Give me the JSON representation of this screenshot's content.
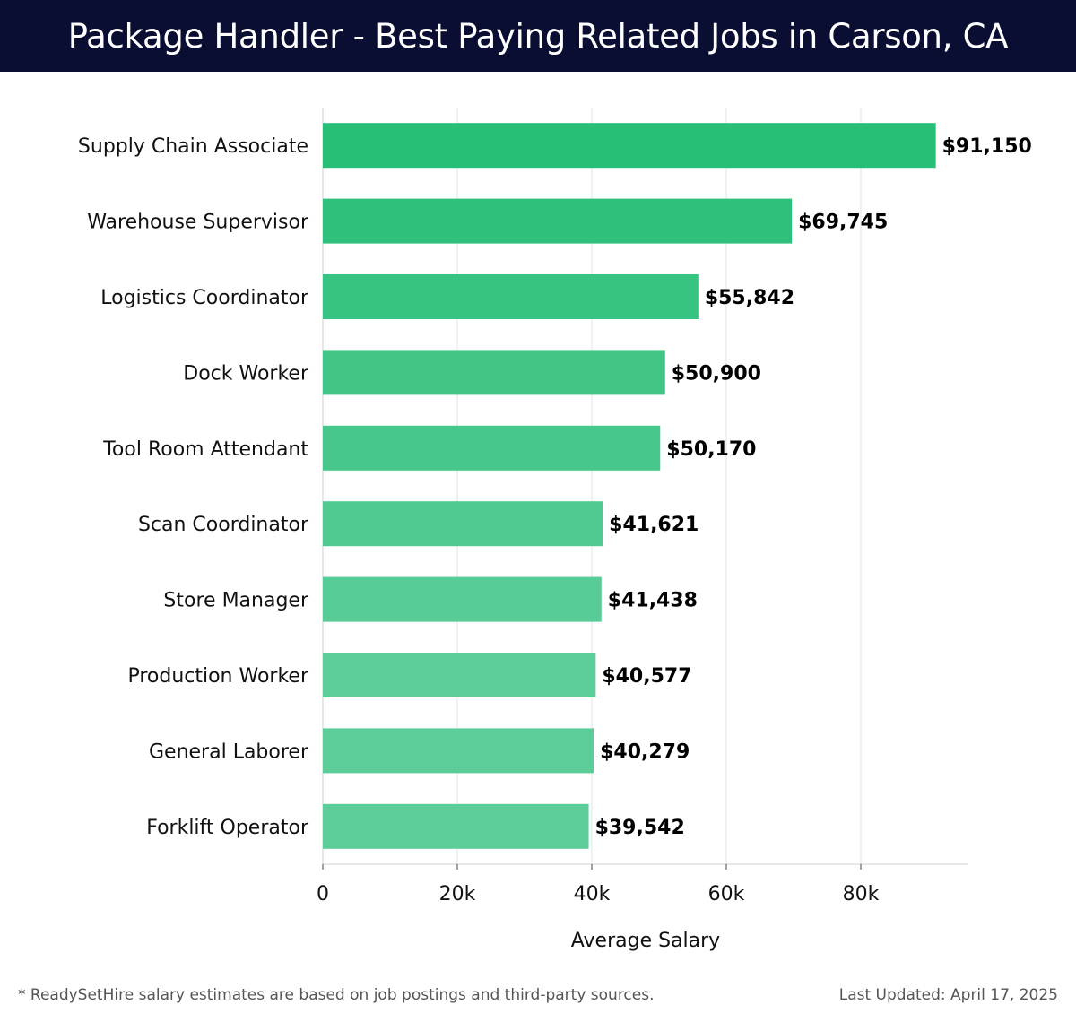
{
  "header": {
    "title": "Package Handler - Best Paying Related Jobs in Carson, CA"
  },
  "chart_data": {
    "type": "bar",
    "orientation": "horizontal",
    "categories": [
      "Supply Chain Associate",
      "Warehouse Supervisor",
      "Logistics Coordinator",
      "Dock Worker",
      "Tool Room Attendant",
      "Scan Coordinator",
      "Store Manager",
      "Production Worker",
      "General Laborer",
      "Forklift Operator"
    ],
    "values": [
      91150,
      69745,
      55842,
      50900,
      50170,
      41621,
      41438,
      40577,
      40279,
      39542
    ],
    "value_labels": [
      "$91,150",
      "$69,745",
      "$55,842",
      "$50,900",
      "$50,170",
      "$41,621",
      "$41,438",
      "$40,577",
      "$40,279",
      "$39,542"
    ],
    "xlabel": "Average Salary",
    "ylabel": "",
    "xlim": [
      0,
      96000
    ],
    "xticks": [
      0,
      20000,
      40000,
      60000,
      80000
    ],
    "xtick_labels": [
      "0",
      "20k",
      "40k",
      "60k",
      "80k"
    ],
    "grid": true,
    "colors": {
      "bar_top": "#27be76",
      "bar_bottom": "#5ccd99"
    }
  },
  "footer": {
    "note": "* ReadySetHire salary estimates are based on job postings and third-party sources.",
    "updated": "Last Updated: April 17, 2025"
  }
}
